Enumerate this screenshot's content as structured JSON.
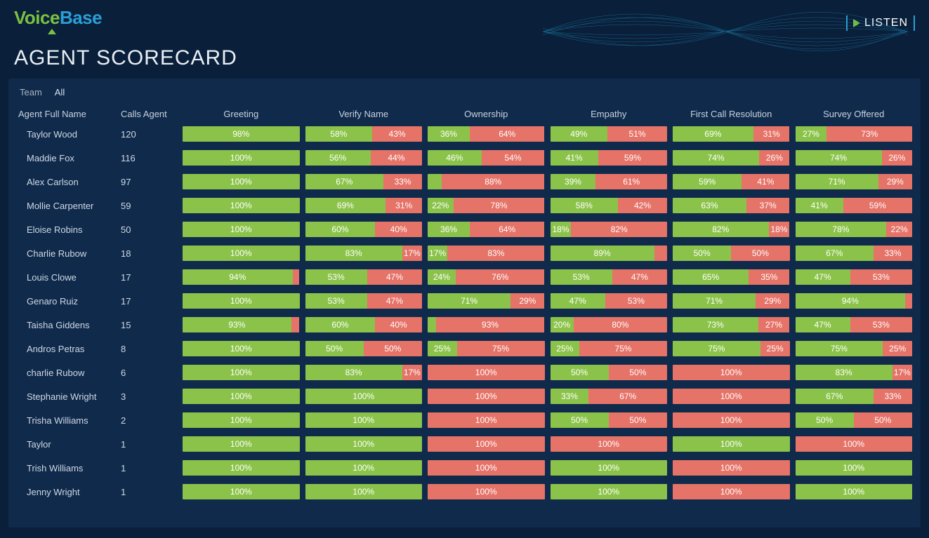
{
  "brand": {
    "part1": "Voice",
    "part2": "Base",
    "listen": "LISTEN"
  },
  "page_title": "AGENT SCORECARD",
  "filter": {
    "label": "Team",
    "value": "All"
  },
  "colors": {
    "pass": "#8bc34a",
    "fail": "#e57368",
    "bg": "#0a1f3a",
    "panel": "#102a4c"
  },
  "columns": [
    "Agent Full Name",
    "Calls Agent",
    "Greeting",
    "Verify Name",
    "Ownership",
    "Empathy",
    "First Call Resolution",
    "Survey Offered"
  ],
  "rows": [
    {
      "name": "Taylor Wood",
      "calls": "120",
      "metrics": [
        {
          "g": 98,
          "r": null
        },
        {
          "g": 58,
          "r": 43
        },
        {
          "g": 36,
          "r": 64
        },
        {
          "g": 49,
          "r": 51
        },
        {
          "g": 69,
          "r": 31
        },
        {
          "g": 27,
          "r": 73
        }
      ]
    },
    {
      "name": "Maddie Fox",
      "calls": "116",
      "metrics": [
        {
          "g": 100,
          "r": null
        },
        {
          "g": 56,
          "r": 44
        },
        {
          "g": 46,
          "r": 54
        },
        {
          "g": 41,
          "r": 59
        },
        {
          "g": 74,
          "r": 26
        },
        {
          "g": 74,
          "r": 26
        }
      ]
    },
    {
      "name": "Alex Carlson",
      "calls": "97",
      "metrics": [
        {
          "g": 100,
          "r": null
        },
        {
          "g": 67,
          "r": 33
        },
        {
          "g": 12,
          "gl": "",
          "r": 88
        },
        {
          "g": 39,
          "r": 61
        },
        {
          "g": 59,
          "r": 41
        },
        {
          "g": 71,
          "r": 29
        }
      ]
    },
    {
      "name": "Mollie Carpenter",
      "calls": "59",
      "metrics": [
        {
          "g": 100,
          "r": null
        },
        {
          "g": 69,
          "r": 31
        },
        {
          "g": 22,
          "r": 78
        },
        {
          "g": 58,
          "r": 42
        },
        {
          "g": 63,
          "r": 37
        },
        {
          "g": 41,
          "r": 59
        }
      ]
    },
    {
      "name": "Eloise Robins",
      "calls": "50",
      "metrics": [
        {
          "g": 100,
          "r": null
        },
        {
          "g": 60,
          "r": 40
        },
        {
          "g": 36,
          "r": 64
        },
        {
          "g": 18,
          "r": 82
        },
        {
          "g": 82,
          "r": 18
        },
        {
          "g": 78,
          "r": 22
        }
      ]
    },
    {
      "name": "Charlie Rubow",
      "calls": "18",
      "metrics": [
        {
          "g": 100,
          "r": null
        },
        {
          "g": 83,
          "r": 17
        },
        {
          "g": 17,
          "r": 83
        },
        {
          "g": 89,
          "r": 11,
          "rl": ""
        },
        {
          "g": 50,
          "r": 50
        },
        {
          "g": 67,
          "r": 33
        }
      ]
    },
    {
      "name": "Louis Clowe",
      "calls": "17",
      "metrics": [
        {
          "g": 94,
          "r": 6,
          "rl": ""
        },
        {
          "g": 53,
          "r": 47
        },
        {
          "g": 24,
          "r": 76
        },
        {
          "g": 53,
          "r": 47
        },
        {
          "g": 65,
          "r": 35
        },
        {
          "g": 47,
          "r": 53
        }
      ]
    },
    {
      "name": "Genaro Ruiz",
      "calls": "17",
      "metrics": [
        {
          "g": 100,
          "r": null
        },
        {
          "g": 53,
          "r": 47
        },
        {
          "g": 71,
          "r": 29
        },
        {
          "g": 47,
          "r": 53
        },
        {
          "g": 71,
          "r": 29
        },
        {
          "g": 94,
          "r": 6,
          "rl": ""
        }
      ]
    },
    {
      "name": "Taisha Giddens",
      "calls": "15",
      "metrics": [
        {
          "g": 93,
          "r": 7,
          "rl": ""
        },
        {
          "g": 60,
          "r": 40
        },
        {
          "g": 7,
          "gl": "",
          "r": 93
        },
        {
          "g": 20,
          "r": 80
        },
        {
          "g": 73,
          "r": 27
        },
        {
          "g": 47,
          "r": 53
        }
      ]
    },
    {
      "name": "Andros Petras",
      "calls": "8",
      "metrics": [
        {
          "g": 100,
          "r": null
        },
        {
          "g": 50,
          "r": 50
        },
        {
          "g": 25,
          "r": 75
        },
        {
          "g": 25,
          "r": 75
        },
        {
          "g": 75,
          "r": 25
        },
        {
          "g": 75,
          "r": 25
        }
      ]
    },
    {
      "name": "charlie Rubow",
      "calls": "6",
      "metrics": [
        {
          "g": 100,
          "r": null
        },
        {
          "g": 83,
          "r": 17
        },
        {
          "g": 0,
          "r": 100
        },
        {
          "g": 50,
          "r": 50
        },
        {
          "g": 100,
          "r": null,
          "gcol": "red"
        },
        {
          "g": 83,
          "r": 17
        }
      ]
    },
    {
      "name": "Stephanie Wright",
      "calls": "3",
      "metrics": [
        {
          "g": 100,
          "r": null
        },
        {
          "g": 100,
          "r": null
        },
        {
          "g": 0,
          "r": 100,
          "gl": ""
        },
        {
          "g": 33,
          "r": 67
        },
        {
          "g": 100,
          "r": null,
          "gcol": "red"
        },
        {
          "g": 67,
          "r": 33
        }
      ]
    },
    {
      "name": "Trisha Williams",
      "calls": "2",
      "metrics": [
        {
          "g": 100,
          "r": null
        },
        {
          "g": 100,
          "r": null
        },
        {
          "g": 0,
          "r": 100,
          "gl": ""
        },
        {
          "g": 50,
          "r": 50
        },
        {
          "g": 100,
          "r": null,
          "gcol": "red"
        },
        {
          "g": 50,
          "r": 50
        }
      ]
    },
    {
      "name": "Taylor",
      "calls": "1",
      "metrics": [
        {
          "g": 100,
          "r": null
        },
        {
          "g": 100,
          "r": null
        },
        {
          "g": 0,
          "r": 100,
          "gl": ""
        },
        {
          "g": 100,
          "r": null,
          "gcol": "red"
        },
        {
          "g": 100,
          "r": null
        },
        {
          "g": 100,
          "r": null,
          "gcol": "red"
        }
      ]
    },
    {
      "name": "Trish Williams",
      "calls": "1",
      "metrics": [
        {
          "g": 100,
          "r": null
        },
        {
          "g": 100,
          "r": null
        },
        {
          "g": 0,
          "r": 100,
          "gl": ""
        },
        {
          "g": 100,
          "r": null
        },
        {
          "g": 100,
          "r": null,
          "gcol": "red"
        },
        {
          "g": 100,
          "r": null
        }
      ]
    },
    {
      "name": "Jenny Wright",
      "calls": "1",
      "metrics": [
        {
          "g": 100,
          "r": null
        },
        {
          "g": 100,
          "r": null
        },
        {
          "g": 0,
          "r": 100,
          "gl": ""
        },
        {
          "g": 100,
          "r": null
        },
        {
          "g": 100,
          "r": null,
          "gcol": "red"
        },
        {
          "g": 100,
          "r": null
        }
      ]
    }
  ]
}
